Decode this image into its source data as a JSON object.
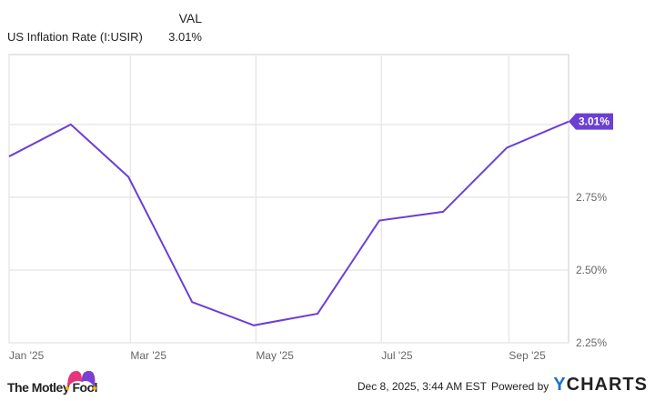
{
  "header": {
    "col_label": "VAL",
    "series_label": "US Inflation Rate (I:USIR)",
    "series_value": "3.01%"
  },
  "chart_data": {
    "type": "line",
    "series": [
      {
        "name": "US Inflation Rate (I:USIR)",
        "x": [
          "2024-12-31",
          "2025-01-31",
          "2025-02-28",
          "2025-03-31",
          "2025-04-30",
          "2025-05-31",
          "2025-06-30",
          "2025-07-31",
          "2025-08-31",
          "2025-09-30"
        ],
        "values": [
          2.89,
          3.0,
          2.82,
          2.39,
          2.31,
          2.35,
          2.67,
          2.7,
          2.92,
          3.01
        ],
        "color": "#6b3fd4"
      }
    ],
    "xlim": [
      "2025-01-01",
      "2025-09-30"
    ],
    "x_ticks": [
      {
        "date": "2025-01-01",
        "label": "Jan '25"
      },
      {
        "date": "2025-03-01",
        "label": "Mar '25"
      },
      {
        "date": "2025-05-01",
        "label": "May '25"
      },
      {
        "date": "2025-07-01",
        "label": "Jul '25"
      },
      {
        "date": "2025-09-01",
        "label": "Sep '25"
      }
    ],
    "ylim": [
      2.25,
      3.24
    ],
    "y_ticks": [
      {
        "value": 2.25,
        "label": "2.25%"
      },
      {
        "value": 2.5,
        "label": "2.50%"
      },
      {
        "value": 2.75,
        "label": "2.75%"
      },
      {
        "value": 3.0,
        "label": ""
      }
    ],
    "last_value_label": "3.01%",
    "grid": true
  },
  "footer": {
    "logo_text": "The Motley Fool",
    "timestamp": "Dec 8, 2025, 3:44 AM EST",
    "powered_by": "Powered by",
    "brand": "YCHARTS",
    "brand_color": "#1a73c8"
  }
}
